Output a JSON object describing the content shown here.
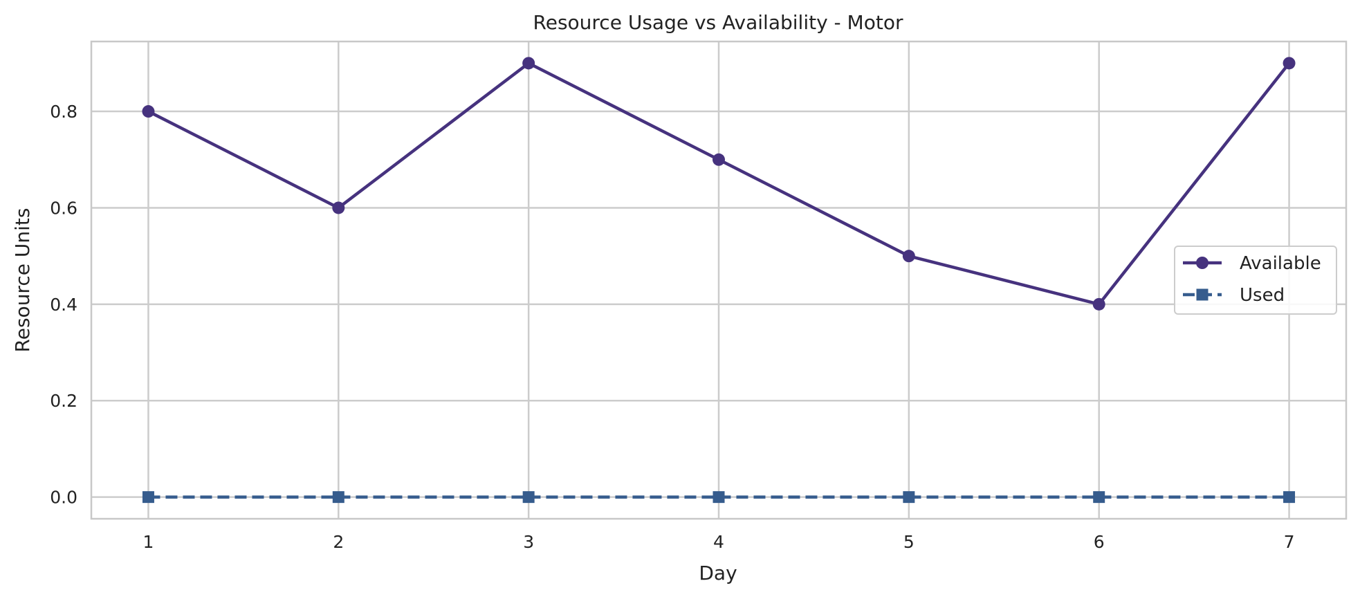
{
  "chart_data": {
    "type": "line",
    "title": "Resource Usage vs Availability - Motor",
    "xlabel": "Day",
    "ylabel": "Resource Units",
    "x": [
      1,
      2,
      3,
      4,
      5,
      6,
      7
    ],
    "xlim": [
      0.7,
      7.3
    ],
    "ylim": [
      -0.045,
      0.945
    ],
    "x_ticks": [
      "1",
      "2",
      "3",
      "4",
      "5",
      "6",
      "7"
    ],
    "y_ticks": [
      "0.0",
      "0.2",
      "0.4",
      "0.6",
      "0.8"
    ],
    "y_tick_values": [
      0.0,
      0.2,
      0.4,
      0.6,
      0.8
    ],
    "grid": true,
    "legend_position": "center-right",
    "series": [
      {
        "name": "Available",
        "values": [
          0.8,
          0.6,
          0.9,
          0.7,
          0.5,
          0.4,
          0.9
        ],
        "color": "#46327e",
        "line_style": "solid",
        "marker": "circle"
      },
      {
        "name": "Used",
        "values": [
          0.0,
          0.0,
          0.0,
          0.0,
          0.0,
          0.0,
          0.0
        ],
        "color": "#365c8d",
        "line_style": "dashed",
        "marker": "square"
      }
    ]
  }
}
